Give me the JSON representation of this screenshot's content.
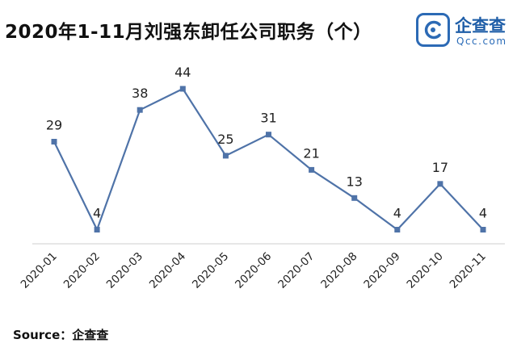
{
  "chart_data": {
    "type": "line",
    "title": "2020年1-11月刘强东卸任公司职务（个）",
    "categories": [
      "2020-01",
      "2020-02",
      "2020-03",
      "2020-04",
      "2020-05",
      "2020-06",
      "2020-07",
      "2020-08",
      "2020-09",
      "2020-10",
      "2020-11"
    ],
    "series": [
      {
        "values": [
          29,
          4,
          38,
          44,
          25,
          31,
          21,
          13,
          4,
          17,
          4
        ]
      }
    ],
    "xlabel": "",
    "ylabel": "",
    "grid": false,
    "legend": "none",
    "line_color": "#4f73a8",
    "marker_color": "#4f73a8",
    "baseline_color": "#cfcfcf"
  },
  "source": {
    "label": "Source：",
    "name": "企查查"
  },
  "logo": {
    "name": "企查查",
    "domain": "Qcc.com",
    "color": "#2c6ab5"
  },
  "icons": {
    "logo_mark": "qcc-c-logo-icon"
  }
}
